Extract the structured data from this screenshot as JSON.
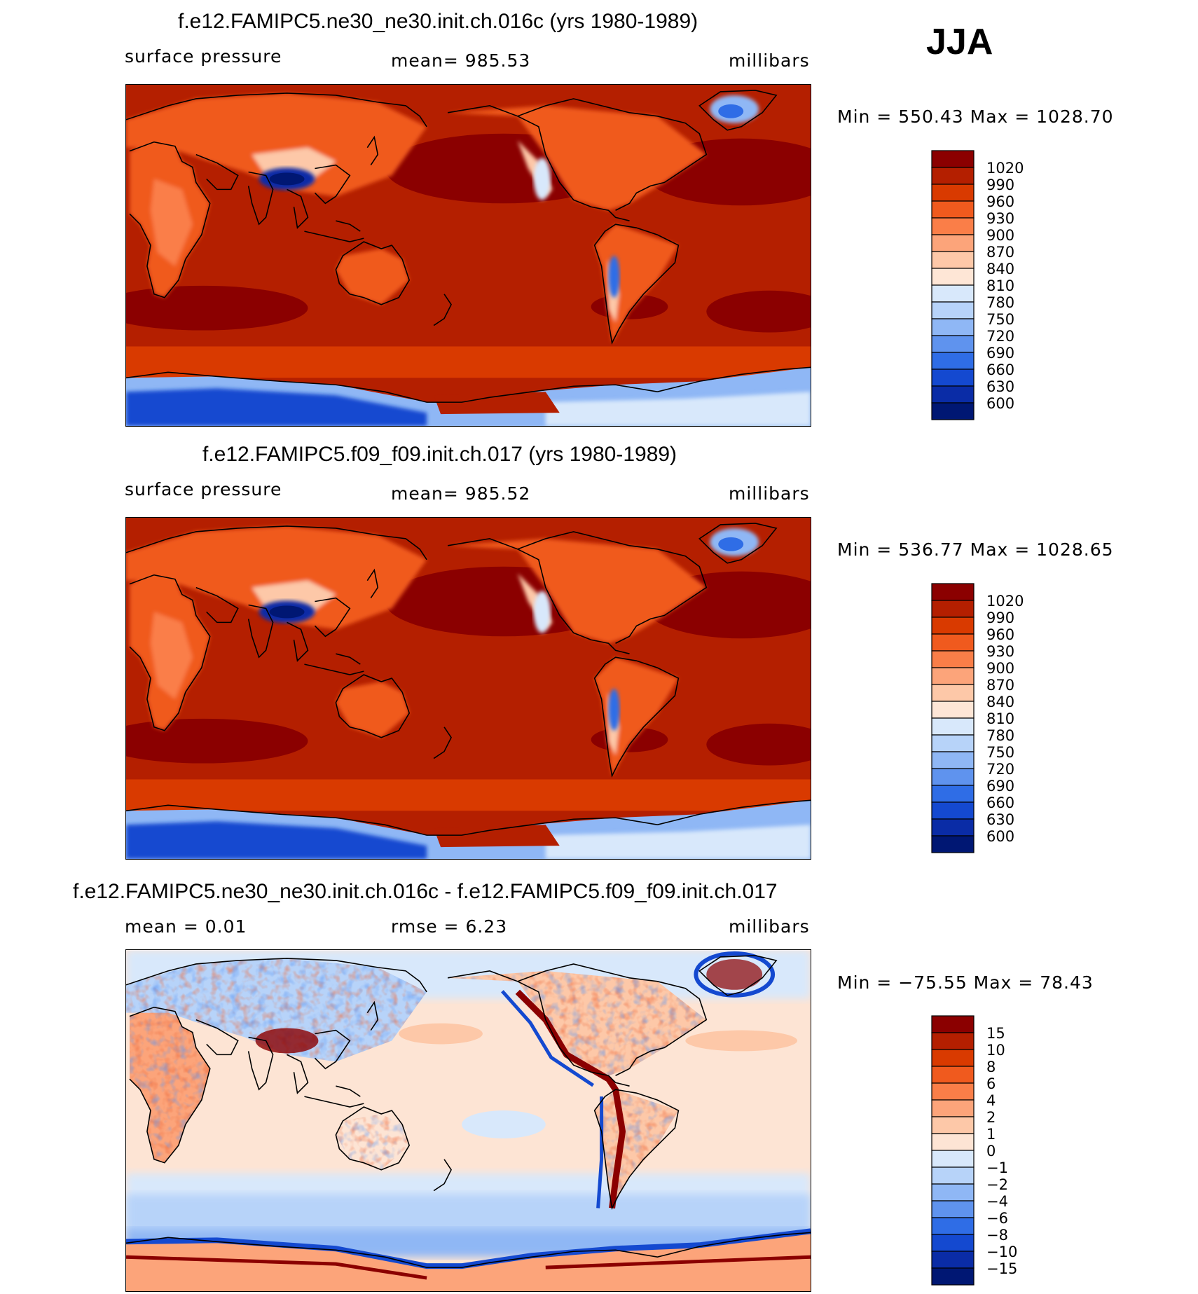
{
  "season": "JJA",
  "panels": [
    {
      "title": "f.e12.FAMIPC5.ne30_ne30.init.ch.016c (yrs 1980-1989)",
      "left_label": "surface pressure",
      "center_label": "mean=  985.53",
      "right_label": "millibars",
      "minmax": "Min  =  550.43  Max  =  1028.70",
      "colorbar_labels": [
        "1020",
        "990",
        "960",
        "930",
        "900",
        "870",
        "840",
        "810",
        "780",
        "750",
        "720",
        "690",
        "660",
        "630",
        "600"
      ]
    },
    {
      "title": "f.e12.FAMIPC5.f09_f09.init.ch.017 (yrs 1980-1989)",
      "left_label": "surface pressure",
      "center_label": "mean=  985.52",
      "right_label": "millibars",
      "minmax": "Min  =  536.77  Max  =  1028.65",
      "colorbar_labels": [
        "1020",
        "990",
        "960",
        "930",
        "900",
        "870",
        "840",
        "810",
        "780",
        "750",
        "720",
        "690",
        "660",
        "630",
        "600"
      ]
    },
    {
      "title": "f.e12.FAMIPC5.ne30_ne30.init.ch.016c - f.e12.FAMIPC5.f09_f09.init.ch.017",
      "left_label": "mean  =     0.01",
      "center_label": "rmse  =     6.23",
      "right_label": "millibars",
      "minmax": "Min  =  −75.55  Max  =    78.43",
      "colorbar_labels": [
        "15",
        "10",
        "8",
        "6",
        "4",
        "2",
        "1",
        "0",
        "−1",
        "−2",
        "−4",
        "−6",
        "−8",
        "−10",
        "−15"
      ]
    }
  ],
  "colors": {
    "abs_scale": [
      "#8b0000",
      "#b41f00",
      "#d93a00",
      "#f05a1e",
      "#fa7e48",
      "#fca47a",
      "#fdc8a8",
      "#fee6d6",
      "#d8e8fb",
      "#b7d3f9",
      "#8fb7f5",
      "#5f93ee",
      "#2f6de6",
      "#1449d0",
      "#0a2ca6",
      "#001773"
    ],
    "diff_scale": [
      "#8b0000",
      "#b41f00",
      "#d93a00",
      "#f05a1e",
      "#fa7e48",
      "#fca47a",
      "#fdc8a8",
      "#fde4d4",
      "#d8e8fb",
      "#b7d3f9",
      "#8fb7f5",
      "#5f93ee",
      "#2f6de6",
      "#1449d0",
      "#0a2ca6",
      "#001773"
    ]
  },
  "chart_data": [
    {
      "type": "heatmap",
      "title": "f.e12.FAMIPC5.ne30_ne30.init.ch.016c (yrs 1980-1989)",
      "variable": "surface pressure",
      "units": "millibars",
      "mean": 985.53,
      "min": 550.43,
      "max": 1028.7,
      "levels": [
        600,
        630,
        660,
        690,
        720,
        750,
        780,
        810,
        840,
        870,
        900,
        930,
        960,
        990,
        1020
      ],
      "map_projection": "global lat-lon, Pacific-centered",
      "season": "JJA"
    },
    {
      "type": "heatmap",
      "title": "f.e12.FAMIPC5.f09_f09.init.ch.017 (yrs 1980-1989)",
      "variable": "surface pressure",
      "units": "millibars",
      "mean": 985.52,
      "min": 536.77,
      "max": 1028.65,
      "levels": [
        600,
        630,
        660,
        690,
        720,
        750,
        780,
        810,
        840,
        870,
        900,
        930,
        960,
        990,
        1020
      ],
      "map_projection": "global lat-lon, Pacific-centered",
      "season": "JJA"
    },
    {
      "type": "heatmap",
      "title": "f.e12.FAMIPC5.ne30_ne30.init.ch.016c - f.e12.FAMIPC5.f09_f09.init.ch.017",
      "units": "millibars",
      "mean": 0.01,
      "rmse": 6.23,
      "min": -75.55,
      "max": 78.43,
      "levels": [
        -15,
        -10,
        -8,
        -6,
        -4,
        -2,
        -1,
        0,
        1,
        2,
        4,
        6,
        8,
        10,
        15
      ],
      "map_projection": "global lat-lon, Pacific-centered",
      "season": "JJA"
    }
  ]
}
